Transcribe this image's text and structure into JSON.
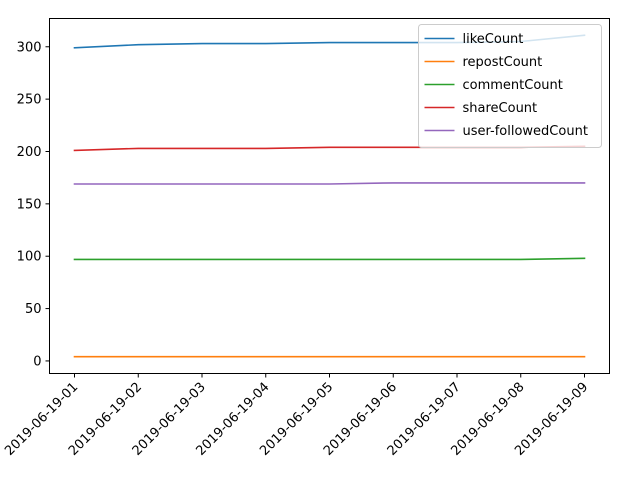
{
  "chart_data": {
    "type": "line",
    "title": "",
    "xlabel": "",
    "ylabel": "",
    "x": [
      "2019-06-19-01",
      "2019-06-19-02",
      "2019-06-19-03",
      "2019-06-19-04",
      "2019-06-19-05",
      "2019-06-19-06",
      "2019-06-19-07",
      "2019-06-19-08",
      "2019-06-19-09"
    ],
    "ylim": [
      -12,
      327
    ],
    "yticks": [
      0,
      50,
      100,
      150,
      200,
      250,
      300
    ],
    "grid": false,
    "legend_position": "top-right",
    "series": [
      {
        "name": "likeCount",
        "color": "#1f77b4",
        "values": [
          299,
          302,
          303,
          303,
          304,
          304,
          304,
          305,
          311
        ]
      },
      {
        "name": "repostCount",
        "color": "#ff7f0e",
        "values": [
          4,
          4,
          4,
          4,
          4,
          4,
          4,
          4,
          4
        ]
      },
      {
        "name": "commentCount",
        "color": "#2ca02c",
        "values": [
          97,
          97,
          97,
          97,
          97,
          97,
          97,
          97,
          98
        ]
      },
      {
        "name": "shareCount",
        "color": "#d62728",
        "values": [
          201,
          203,
          203,
          203,
          204,
          204,
          204,
          204,
          205
        ]
      },
      {
        "name": "user-followedCount",
        "color": "#9467bd",
        "values": [
          169,
          169,
          169,
          169,
          169,
          170,
          170,
          170,
          170
        ]
      }
    ]
  }
}
